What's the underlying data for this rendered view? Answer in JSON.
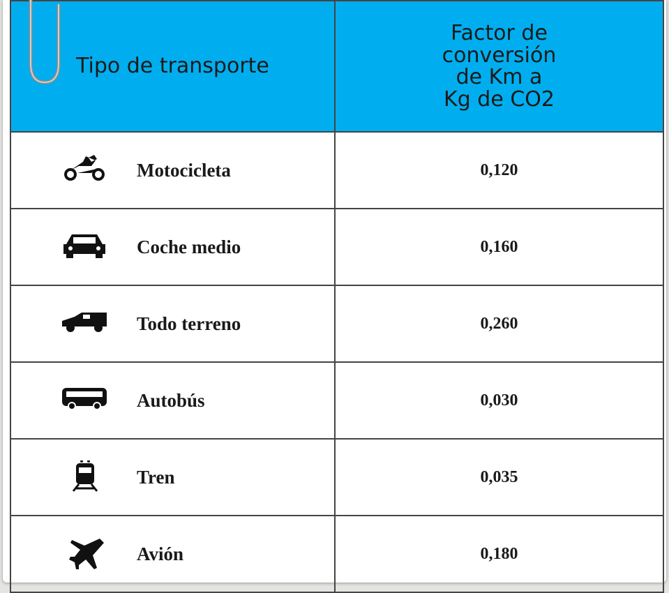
{
  "table": {
    "header": [
      "Tipo de transporte",
      "Factor de conversión de Km a Kg de CO2"
    ],
    "rows": [
      [
        "Motocicleta",
        "0,120"
      ],
      [
        "Coche medio",
        "0,160"
      ],
      [
        "Todo terreno",
        "0,260"
      ],
      [
        "Autobús",
        "0,030"
      ],
      [
        "Tren",
        "0,035"
      ],
      [
        "Avión",
        "0,180"
      ]
    ]
  }
}
